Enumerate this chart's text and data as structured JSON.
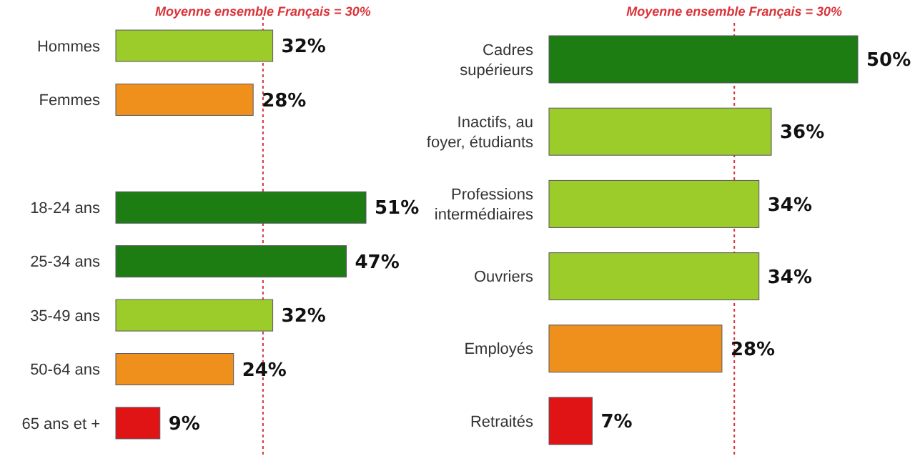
{
  "chart_data": [
    {
      "type": "bar",
      "orientation": "horizontal",
      "categories": [
        "Hommes",
        "Femmes",
        null,
        "18-24 ans",
        "25-34 ans",
        "35-49 ans",
        "50-64 ans",
        "65 ans et +"
      ],
      "values": [
        32,
        28,
        null,
        51,
        47,
        32,
        24,
        9
      ],
      "value_labels": [
        "32%",
        "28%",
        null,
        "51%",
        "47%",
        "32%",
        "24%",
        "9%"
      ],
      "colors": [
        "#9ccc2a",
        "#f0901c",
        null,
        "#1e7d12",
        "#1e7d12",
        "#9ccc2a",
        "#f0901c",
        "#e01414"
      ],
      "ref_lines": [
        {
          "axis": "x",
          "value": 30,
          "label": "Moyenne ensemble Français = 30%",
          "color": "#d9343a",
          "line_style": "dotted"
        }
      ]
    },
    {
      "type": "bar",
      "orientation": "horizontal",
      "categories": [
        "Cadres\nsupérieurs",
        "Inactifs, au\nfoyer, étudiants",
        "Professions\nintermédiaires",
        "Ouvriers",
        "Employés",
        "Retraités"
      ],
      "values": [
        50,
        36,
        34,
        34,
        28,
        7
      ],
      "value_labels": [
        "50%",
        "36%",
        "34%",
        "34%",
        "28%",
        "7%"
      ],
      "colors": [
        "#1e7d12",
        "#9ccc2a",
        "#9ccc2a",
        "#9ccc2a",
        "#f0901c",
        "#e01414"
      ],
      "ref_lines": [
        {
          "axis": "x",
          "value": 30,
          "label": "Moyenne ensemble Français = 30%",
          "color": "#d9343a",
          "line_style": "dotted"
        }
      ]
    }
  ]
}
